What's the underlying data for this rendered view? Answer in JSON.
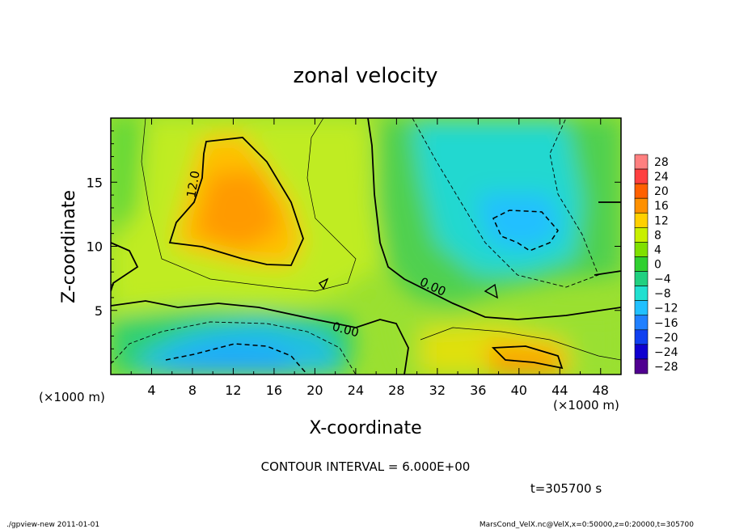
{
  "chart_data": {
    "type": "heatmap",
    "title": "zonal velocity",
    "xlabel": "X-coordinate",
    "ylabel": "Z-coordinate",
    "x_unit_label": "(×1000 m)",
    "y_unit_label": "(×1000 m)",
    "xlim": [
      0,
      50
    ],
    "ylim": [
      0,
      20
    ],
    "x_ticks": [
      "4",
      "8",
      "12",
      "16",
      "20",
      "24",
      "28",
      "32",
      "36",
      "40",
      "44",
      "48"
    ],
    "x_tick_values": [
      4,
      8,
      12,
      16,
      20,
      24,
      28,
      32,
      36,
      40,
      44,
      48
    ],
    "y_ticks": [
      "5",
      "10",
      "15"
    ],
    "y_tick_values": [
      5,
      10,
      15
    ],
    "contour_interval_text": "CONTOUR INTERVAL = 6.000E+00",
    "time_text": "t=305700 s",
    "contour_labels": [
      "12.0",
      "0.00",
      "0.00"
    ],
    "colorbar": {
      "labels": [
        "28",
        "24",
        "20",
        "16",
        "12",
        "8",
        "4",
        "0",
        "−4",
        "−8",
        "−12",
        "−16",
        "−20",
        "−24",
        "−28"
      ],
      "values": [
        28,
        24,
        20,
        16,
        12,
        8,
        4,
        0,
        -4,
        -8,
        -12,
        -16,
        -20,
        -24,
        -28
      ],
      "colors": [
        "#ff8080",
        "#ff4040",
        "#ff6000",
        "#ff9000",
        "#ffd000",
        "#c8f000",
        "#80e000",
        "#30d030",
        "#20d080",
        "#20e0d0",
        "#20c0ff",
        "#2080ff",
        "#1040f0",
        "#1000d0",
        "#500090"
      ]
    },
    "features": [
      {
        "x": 12,
        "z": 13,
        "value": 16,
        "note": "positive maximum"
      },
      {
        "x": 41,
        "z": 1,
        "value": 17,
        "note": "positive maximum"
      },
      {
        "x": 15,
        "z": 1.5,
        "value": -15,
        "note": "negative minimum"
      },
      {
        "x": 40,
        "z": 11.5,
        "value": -13,
        "note": "negative minimum"
      }
    ]
  },
  "footer": {
    "left": "./gpview-new  2011-01-01",
    "right": "MarsCond_VelX.nc@VelX,x=0:50000,z=0:20000,t=305700"
  }
}
